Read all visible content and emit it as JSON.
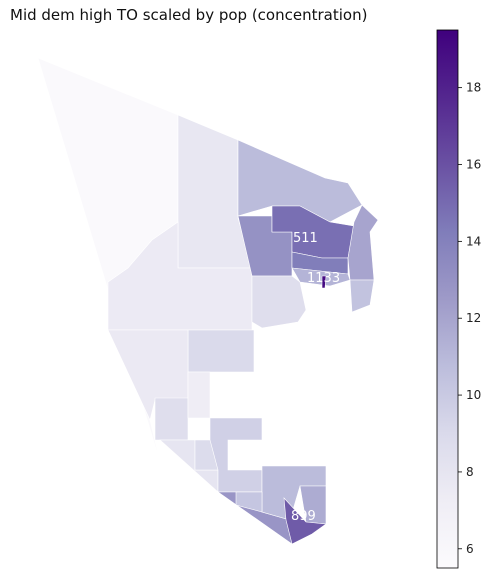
{
  "title": "Mid dem high TO scaled by pop (concentration)",
  "colorbar": {
    "min": 5.5,
    "max": 19.5,
    "ticks": [
      "6",
      "8",
      "10",
      "12",
      "14",
      "16",
      "18"
    ],
    "colormap": "Purples",
    "stops": [
      "#fcfbfd",
      "#efedf5",
      "#dadaeb",
      "#bcbddc",
      "#9e9ac8",
      "#807dba",
      "#6a51a3",
      "#54278f",
      "#3f007d"
    ]
  },
  "regions": [
    {
      "id": "northwest-large",
      "value": 5.8
    },
    {
      "id": "west-central",
      "value": 7.5
    },
    {
      "id": "north-central-strip",
      "value": 7.8
    },
    {
      "id": "central-block",
      "value": 9.0
    },
    {
      "id": "lower-west",
      "value": 7.6
    },
    {
      "id": "lower-west-b",
      "value": 8.6
    },
    {
      "id": "narrow-center",
      "value": 7.2
    },
    {
      "id": "north-east-large",
      "value": 10.8
    },
    {
      "id": "east-cluster-a",
      "value": 13.0
    },
    {
      "id": "east-cluster-b",
      "value": 14.8
    },
    {
      "id": "east-cluster-c",
      "value": 14.2
    },
    {
      "id": "east-cluster-d",
      "value": 12.0
    },
    {
      "id": "east-cluster-e",
      "value": 11.2
    },
    {
      "id": "east-cluster-f",
      "value": 10.4
    },
    {
      "id": "east-lower",
      "value": 8.6
    },
    {
      "id": "east-point",
      "value": 19.0
    },
    {
      "id": "south-a",
      "value": 8.0
    },
    {
      "id": "south-b",
      "value": 8.8
    },
    {
      "id": "south-c",
      "value": 9.6
    },
    {
      "id": "south-d",
      "value": 12.8
    },
    {
      "id": "south-e",
      "value": 10.8
    },
    {
      "id": "south-f",
      "value": 11.6
    },
    {
      "id": "south-g",
      "value": 15.6
    },
    {
      "id": "south-h",
      "value": 10.2
    }
  ],
  "annotations": [
    {
      "text": "511",
      "region": "east-cluster-b"
    },
    {
      "text": "1133",
      "region": "east-point"
    },
    {
      "text": "899",
      "region": "south-g"
    }
  ]
}
